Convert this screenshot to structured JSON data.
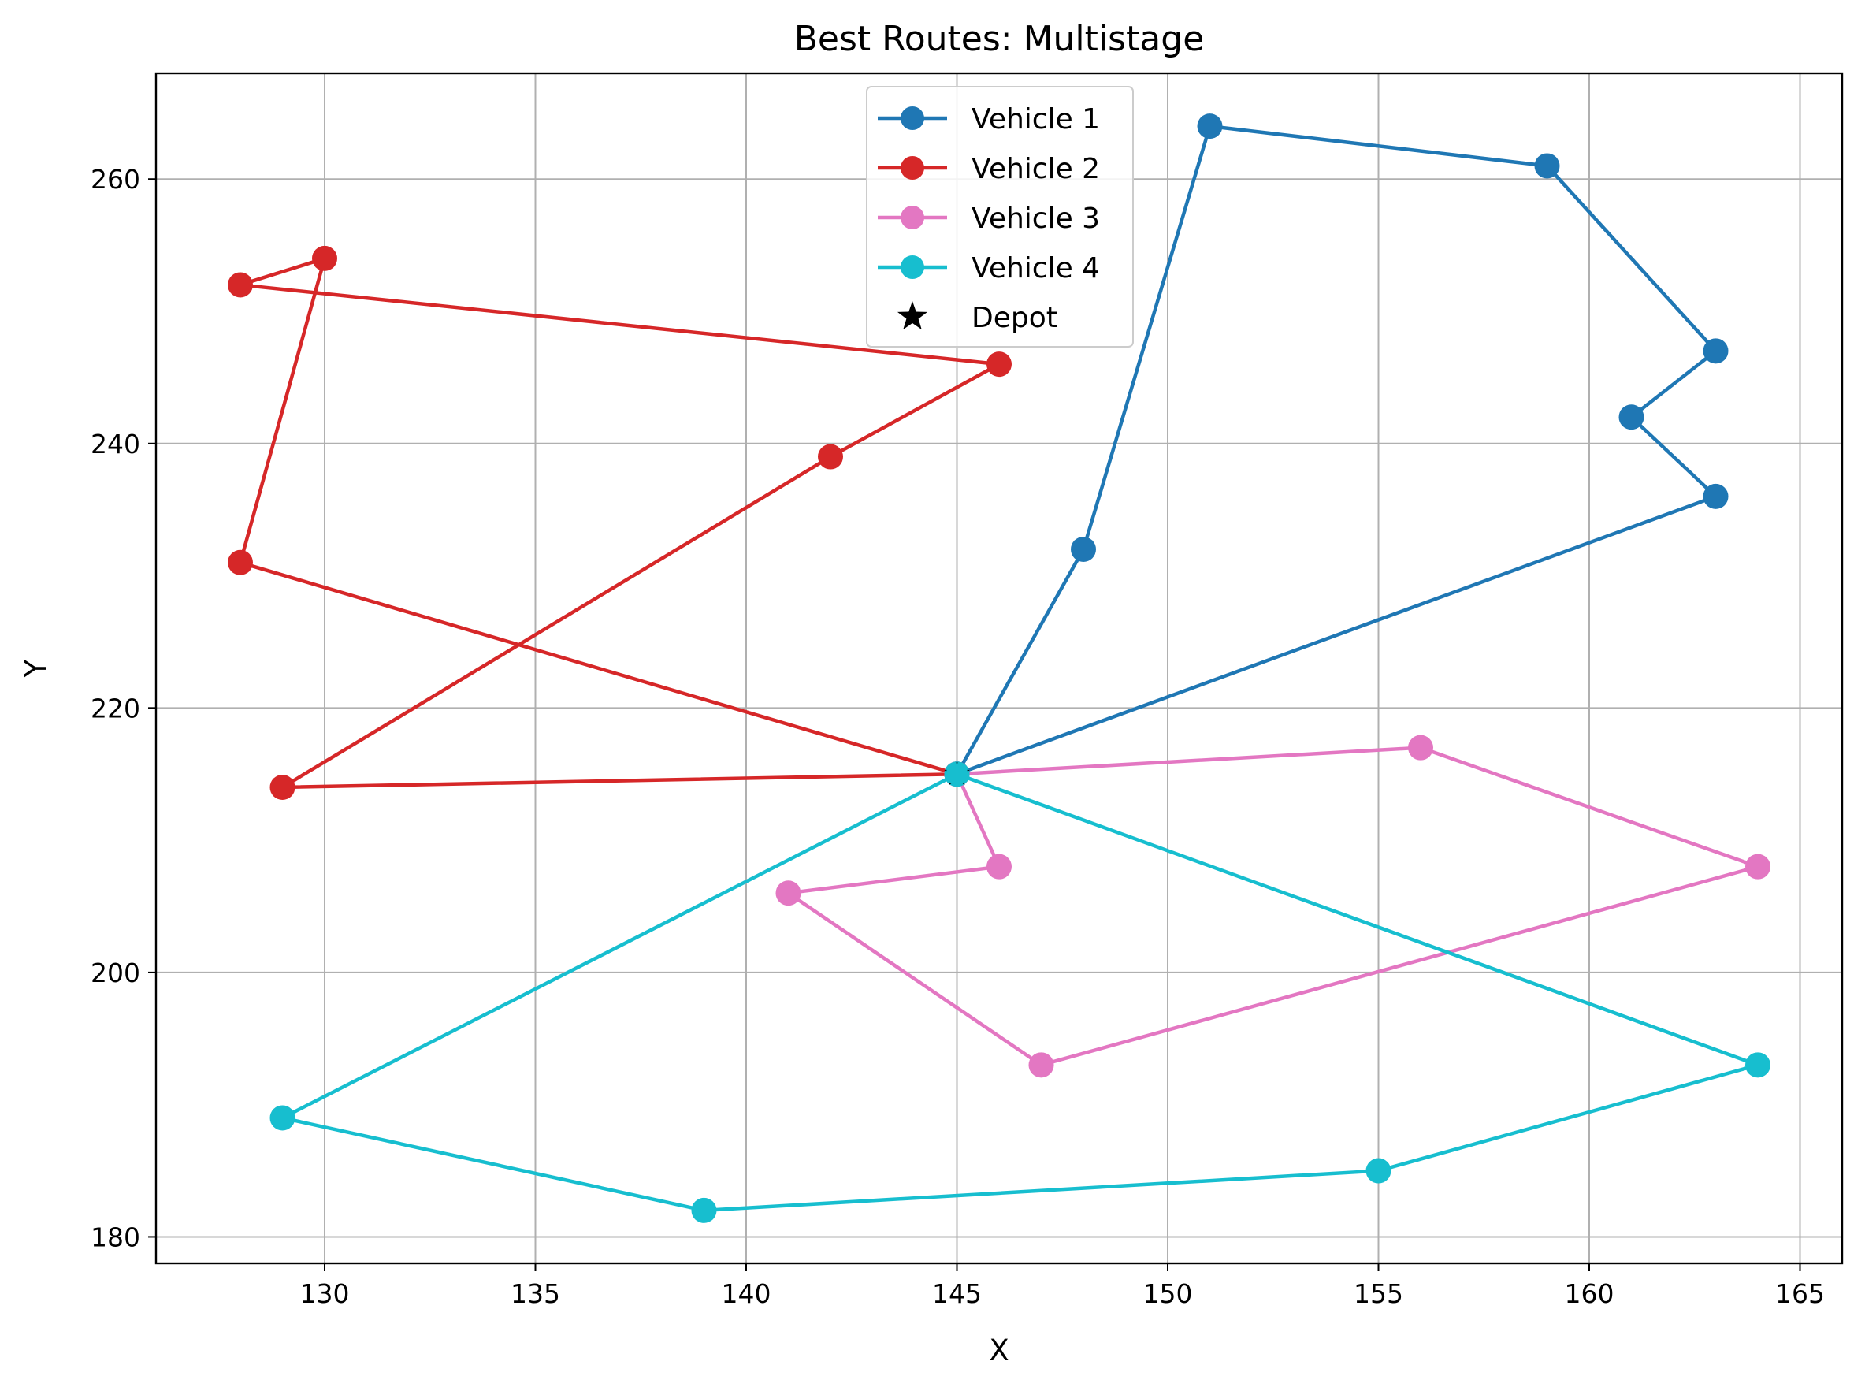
{
  "chart_data": {
    "type": "line",
    "title": "Best Routes: Multistage",
    "xlabel": "X",
    "ylabel": "Y",
    "xlim": [
      126,
      166
    ],
    "ylim": [
      178,
      268
    ],
    "xticks": [
      130,
      135,
      140,
      145,
      150,
      155,
      160,
      165
    ],
    "yticks": [
      180,
      200,
      220,
      240,
      260
    ],
    "grid": true,
    "legend_position": "top-center",
    "series": [
      {
        "name": "Vehicle 1",
        "color": "#1f77b4",
        "points": [
          [
            145,
            215
          ],
          [
            148,
            232
          ],
          [
            151,
            264
          ],
          [
            159,
            261
          ],
          [
            163,
            247
          ],
          [
            161,
            242
          ],
          [
            163,
            236
          ],
          [
            145,
            215
          ]
        ]
      },
      {
        "name": "Vehicle 2",
        "color": "#d62728",
        "points": [
          [
            145,
            215
          ],
          [
            128,
            231
          ],
          [
            130,
            254
          ],
          [
            128,
            252
          ],
          [
            146,
            246
          ],
          [
            142,
            239
          ],
          [
            129,
            214
          ],
          [
            145,
            215
          ]
        ]
      },
      {
        "name": "Vehicle 3",
        "color": "#e377c2",
        "points": [
          [
            145,
            215
          ],
          [
            156,
            217
          ],
          [
            164,
            208
          ],
          [
            147,
            193
          ],
          [
            141,
            206
          ],
          [
            146,
            208
          ],
          [
            145,
            215
          ]
        ]
      },
      {
        "name": "Vehicle 4",
        "color": "#17becf",
        "points": [
          [
            145,
            215
          ],
          [
            164,
            193
          ],
          [
            155,
            185
          ],
          [
            139,
            182
          ],
          [
            129,
            189
          ],
          [
            145,
            215
          ]
        ]
      }
    ],
    "depot": {
      "name": "Depot",
      "color": "#000000",
      "x": 145,
      "y": 215
    }
  }
}
